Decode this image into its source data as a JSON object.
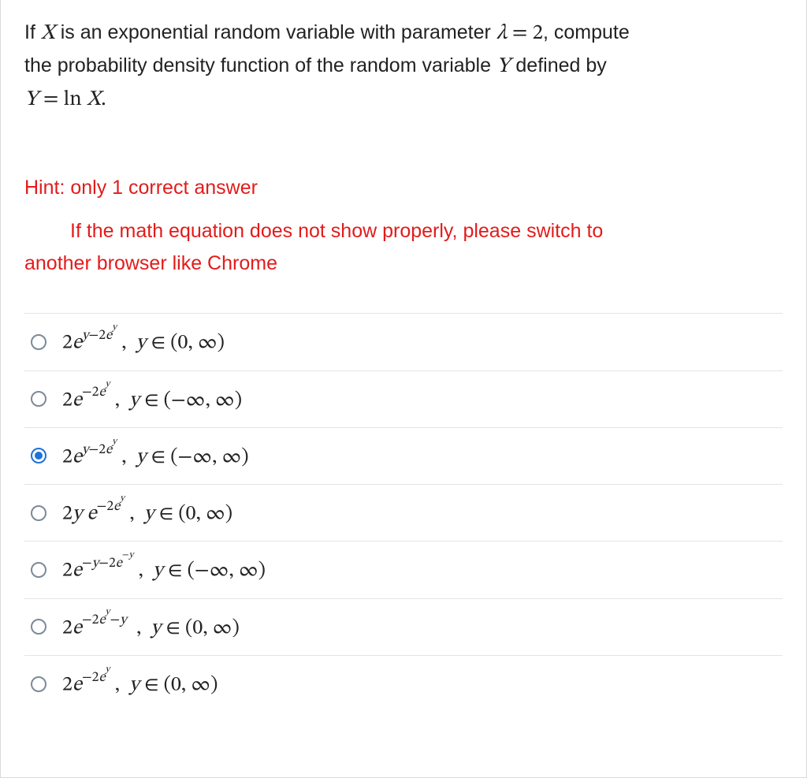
{
  "question": {
    "line1_part1": "If ",
    "X": "X",
    "line1_part2": " is an exponential random variable with parameter ",
    "lambda": "λ",
    "eq": " = ",
    "two": "2",
    "line1_part3": ", compute",
    "line2_part1": "the probability density function of the random variable ",
    "Y": "Y",
    "line2_part2": " defined by",
    "line3_Y": "Y",
    "line3_eq": " = ",
    "line3_ln": "ln ",
    "line3_X": "X",
    "line3_dot": "."
  },
  "hint": {
    "line1": "Hint: only 1 correct answer",
    "line2a": "If the math equation does not show properly, please switch to",
    "line2b": "another browser like Chrome"
  },
  "options": [
    {
      "id": "opt1",
      "selected": false,
      "html": "2<span class=\"mi\">e</span><span class=\"sup\"><span class=\"mi\">y</span>−2<span class=\"mi\">e</span><span class=\"subsup\"><span class=\"mi\">y</span></span></span> ,&nbsp; <span class=\"mi\">y</span> ∈ (0, ∞)"
    },
    {
      "id": "opt2",
      "selected": false,
      "html": "2<span class=\"mi\">e</span><span class=\"sup\">−2<span class=\"mi\">e</span><span class=\"subsup\"><span class=\"mi\">y</span></span></span> ,&nbsp; <span class=\"mi\">y</span> ∈ (−∞, ∞)"
    },
    {
      "id": "opt3",
      "selected": true,
      "html": "2<span class=\"mi\">e</span><span class=\"sup\"><span class=\"mi\">y</span>−2<span class=\"mi\">e</span><span class=\"subsup\"><span class=\"mi\">y</span></span></span> ,&nbsp; <span class=\"mi\">y</span> ∈ (−∞, ∞)"
    },
    {
      "id": "opt4",
      "selected": false,
      "html": "2<span class=\"mi\">y e</span><span class=\"sup\">−2<span class=\"mi\">e</span><span class=\"subsup\"><span class=\"mi\">y</span></span></span> ,&nbsp; <span class=\"mi\">y</span> ∈ (0, ∞)"
    },
    {
      "id": "opt5",
      "selected": false,
      "html": "2<span class=\"mi\">e</span><span class=\"sup\">−<span class=\"mi\">y</span>−2<span class=\"mi\">e</span><span class=\"subsup\">−<span class=\"mi\">y</span></span></span> ,&nbsp; <span class=\"mi\">y</span> ∈ (−∞, ∞)"
    },
    {
      "id": "opt6",
      "selected": false,
      "html": "2<span class=\"mi\">e</span><span class=\"sup\">−2<span class=\"mi\">e</span><span class=\"subsup\"><span class=\"mi\">y</span></span>−<span class=\"mi\">y</span></span> &nbsp;,&nbsp; <span class=\"mi\">y</span> ∈ (0, ∞)"
    },
    {
      "id": "opt7",
      "selected": false,
      "html": "2<span class=\"mi\">e</span><span class=\"sup\">−2<span class=\"mi\">e</span><span class=\"subsup\"><span class=\"mi\">y</span></span></span> ,&nbsp; <span class=\"mi\">y</span> ∈ (0, ∞)"
    }
  ],
  "colors": {
    "text": "#222222",
    "hint": "#e31b1b",
    "border": "#e4e4e4",
    "radio_border": "#7c8a99",
    "radio_selected": "#1f72d6",
    "background": "#ffffff"
  }
}
